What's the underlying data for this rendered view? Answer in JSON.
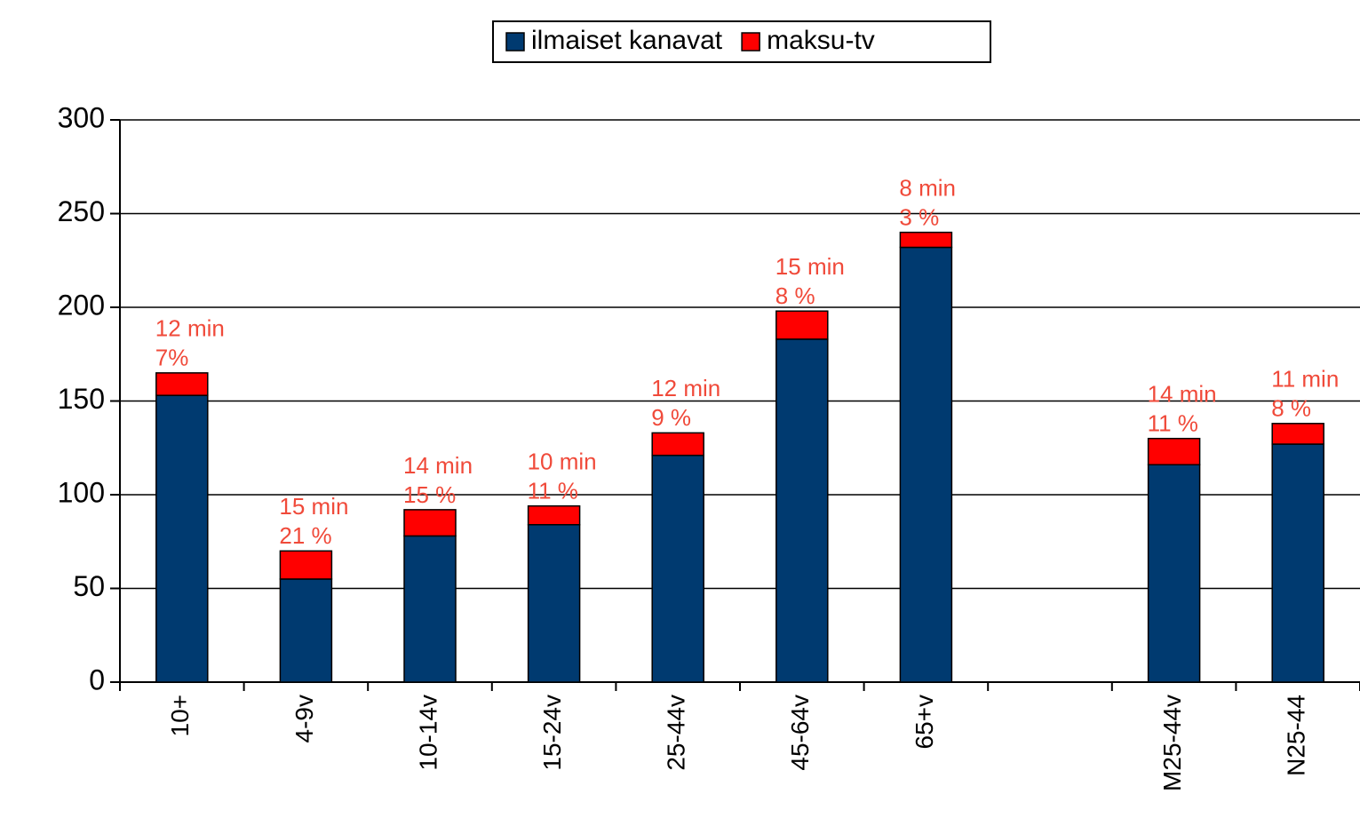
{
  "chart_data": {
    "type": "stacked-bar",
    "categories": [
      "10+",
      "4-9v",
      "10-14v",
      "15-24v",
      "25-44v",
      "45-64v",
      "65+v",
      null,
      "M25-44v",
      "N25-44"
    ],
    "series": [
      {
        "name": "ilmaiset kanavat",
        "color": "#003a70",
        "values": [
          153,
          55,
          78,
          84,
          121,
          183,
          232,
          null,
          116,
          127
        ]
      },
      {
        "name": "maksu-tv",
        "color": "#ff0000",
        "values": [
          12,
          15,
          14,
          10,
          12,
          15,
          8,
          null,
          14,
          11
        ],
        "value_labels": [
          "12 min",
          "15 min",
          "14 min",
          "10 min",
          "12 min",
          "15 min",
          "8 min",
          null,
          "14 min",
          "11 min"
        ],
        "percent_labels": [
          "7%",
          "21 %",
          "15 %",
          "11 %",
          "9 %",
          "8 %",
          "3 %",
          null,
          "11 %",
          "8 %"
        ]
      }
    ],
    "ylim": [
      0,
      300
    ],
    "yticks": [
      0,
      50,
      100,
      150,
      200,
      250,
      300
    ],
    "grid": true,
    "legend": "top"
  }
}
